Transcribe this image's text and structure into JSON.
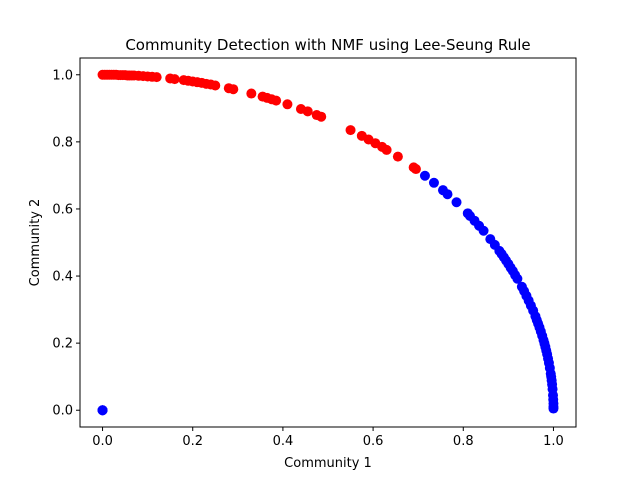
{
  "chart_data": {
    "type": "scatter",
    "title": "Community Detection with NMF using Lee-Seung Rule",
    "xlabel": "Community 1",
    "ylabel": "Community 2",
    "xlim": [
      -0.05,
      1.05
    ],
    "ylim": [
      -0.05,
      1.05
    ],
    "grid": false,
    "legend": "none",
    "x_ticks": [
      {
        "value": 0.0,
        "label": "0.0"
      },
      {
        "value": 0.2,
        "label": "0.2"
      },
      {
        "value": 0.4,
        "label": "0.4"
      },
      {
        "value": 0.6,
        "label": "0.6"
      },
      {
        "value": 0.8,
        "label": "0.8"
      },
      {
        "value": 1.0,
        "label": "1.0"
      }
    ],
    "y_ticks": [
      {
        "value": 0.0,
        "label": "0.0"
      },
      {
        "value": 0.2,
        "label": "0.2"
      },
      {
        "value": 0.4,
        "label": "0.4"
      },
      {
        "value": 0.6,
        "label": "0.6"
      },
      {
        "value": 0.8,
        "label": "0.8"
      },
      {
        "value": 1.0,
        "label": "1.0"
      }
    ],
    "series": [
      {
        "color": "#ff0000",
        "points": [
          [
            0.0,
            1.0
          ],
          [
            0.005,
            1.0
          ],
          [
            0.01,
            1.0
          ],
          [
            0.015,
            1.0
          ],
          [
            0.02,
            1.0
          ],
          [
            0.025,
            1.0
          ],
          [
            0.03,
            1.0
          ],
          [
            0.035,
            0.999
          ],
          [
            0.04,
            0.999
          ],
          [
            0.045,
            0.999
          ],
          [
            0.05,
            0.999
          ],
          [
            0.055,
            0.998
          ],
          [
            0.06,
            0.998
          ],
          [
            0.065,
            0.998
          ],
          [
            0.07,
            0.998
          ],
          [
            0.08,
            0.997
          ],
          [
            0.09,
            0.996
          ],
          [
            0.1,
            0.995
          ],
          [
            0.11,
            0.994
          ],
          [
            0.12,
            0.993
          ],
          [
            0.15,
            0.989
          ],
          [
            0.16,
            0.987
          ],
          [
            0.18,
            0.984
          ],
          [
            0.19,
            0.982
          ],
          [
            0.2,
            0.98
          ],
          [
            0.21,
            0.978
          ],
          [
            0.22,
            0.976
          ],
          [
            0.23,
            0.973
          ],
          [
            0.24,
            0.971
          ],
          [
            0.25,
            0.968
          ],
          [
            0.28,
            0.96
          ],
          [
            0.29,
            0.957
          ],
          [
            0.33,
            0.944
          ],
          [
            0.355,
            0.935
          ],
          [
            0.365,
            0.931
          ],
          [
            0.375,
            0.927
          ],
          [
            0.385,
            0.923
          ],
          [
            0.41,
            0.912
          ],
          [
            0.44,
            0.898
          ],
          [
            0.455,
            0.891
          ],
          [
            0.475,
            0.88
          ],
          [
            0.485,
            0.875
          ],
          [
            0.55,
            0.835
          ],
          [
            0.575,
            0.818
          ],
          [
            0.59,
            0.807
          ],
          [
            0.605,
            0.796
          ],
          [
            0.62,
            0.785
          ],
          [
            0.63,
            0.776
          ],
          [
            0.655,
            0.756
          ],
          [
            0.69,
            0.724
          ],
          [
            0.695,
            0.719
          ]
        ]
      },
      {
        "color": "#0000ff",
        "points": [
          [
            0.0,
            0.0
          ],
          [
            0.0,
            0.0
          ],
          [
            0.0,
            0.0
          ],
          [
            0.715,
            0.699
          ],
          [
            0.735,
            0.678
          ],
          [
            0.755,
            0.656
          ],
          [
            0.765,
            0.644
          ],
          [
            0.785,
            0.62
          ],
          [
            0.81,
            0.587
          ],
          [
            0.815,
            0.579
          ],
          [
            0.825,
            0.565
          ],
          [
            0.835,
            0.55
          ],
          [
            0.845,
            0.535
          ],
          [
            0.86,
            0.51
          ],
          [
            0.87,
            0.493
          ],
          [
            0.88,
            0.475
          ],
          [
            0.885,
            0.466
          ],
          [
            0.89,
            0.456
          ],
          [
            0.895,
            0.446
          ],
          [
            0.9,
            0.436
          ],
          [
            0.905,
            0.425
          ],
          [
            0.91,
            0.415
          ],
          [
            0.915,
            0.403
          ],
          [
            0.92,
            0.392
          ],
          [
            0.93,
            0.368
          ],
          [
            0.935,
            0.355
          ],
          [
            0.94,
            0.341
          ],
          [
            0.945,
            0.327
          ],
          [
            0.95,
            0.312
          ],
          [
            0.955,
            0.297
          ],
          [
            0.96,
            0.28
          ],
          [
            0.963,
            0.269
          ],
          [
            0.966,
            0.258
          ],
          [
            0.969,
            0.247
          ],
          [
            0.972,
            0.235
          ],
          [
            0.975,
            0.222
          ],
          [
            0.978,
            0.209
          ],
          [
            0.98,
            0.199
          ],
          [
            0.982,
            0.189
          ],
          [
            0.984,
            0.178
          ],
          [
            0.986,
            0.167
          ],
          [
            0.988,
            0.154
          ],
          [
            0.99,
            0.141
          ],
          [
            0.992,
            0.126
          ],
          [
            0.994,
            0.109
          ],
          [
            0.995,
            0.1
          ],
          [
            0.996,
            0.089
          ],
          [
            0.997,
            0.077
          ],
          [
            0.998,
            0.063
          ],
          [
            0.999,
            0.045
          ],
          [
            0.9995,
            0.032
          ],
          [
            1.0,
            0.02
          ],
          [
            1.0,
            0.01
          ],
          [
            1.0,
            0.005
          ]
        ]
      }
    ]
  }
}
